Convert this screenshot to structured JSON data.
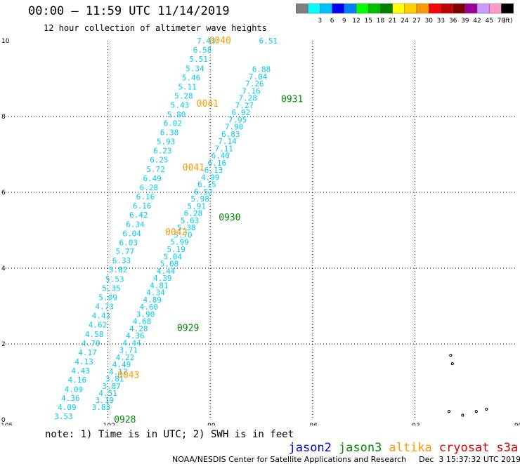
{
  "header": {
    "title": "00:00 – 11:59 UTC 11/14/2019",
    "subtitle": "12 hour collection of altimeter wave heights"
  },
  "colorbar": {
    "unit": "(ft)",
    "entries": [
      {
        "color": "#808080",
        "label": ""
      },
      {
        "color": "#00ffff",
        "label": "3"
      },
      {
        "color": "#00bfff",
        "label": "6"
      },
      {
        "color": "#0000ff",
        "label": "9"
      },
      {
        "color": "#0080ff",
        "label": "12"
      },
      {
        "color": "#00ff00",
        "label": "15"
      },
      {
        "color": "#00c000",
        "label": "18"
      },
      {
        "color": "#008000",
        "label": "21"
      },
      {
        "color": "#ffff00",
        "label": "24"
      },
      {
        "color": "#ffd000",
        "label": "27"
      },
      {
        "color": "#ff9900",
        "label": "30"
      },
      {
        "color": "#ff0000",
        "label": "33"
      },
      {
        "color": "#c00000",
        "label": "36"
      },
      {
        "color": "#800000",
        "label": "39"
      },
      {
        "color": "#990099",
        "label": "42"
      },
      {
        "color": "#cc99ff",
        "label": "45"
      },
      {
        "color": "#ff99cc",
        "label": "70"
      },
      {
        "color": "#000000",
        "label": ""
      }
    ]
  },
  "map": {
    "lon_range": [
      -105,
      -90
    ],
    "lat_range": [
      0,
      10
    ],
    "lon_ticks": [
      "-105",
      "-102",
      "-99",
      "-96",
      "-93",
      "-90"
    ],
    "lat_ticks": [
      "0",
      "2",
      "4",
      "6",
      "8",
      "10"
    ],
    "colors": {
      "jason3": "#008800",
      "altika": "#ff9900",
      "swh": "#00ccee"
    },
    "tracks": [
      {
        "satellite": "altika",
        "values": [
          "7.43",
          "6.58",
          "5.51",
          "5.34",
          "5.46",
          "5.11",
          "5.28",
          "5.43",
          "5.80",
          "6.02",
          "6.38",
          "5.93",
          "6.23",
          "6.25",
          "5.72",
          "6.49",
          "6.28",
          "6.16",
          "6.16",
          "6.42",
          "6.34",
          "6.04",
          "6.03",
          "5.77",
          "6.33",
          "5.82",
          "5.53",
          "5.35",
          "5.09",
          "4.73",
          "4.43",
          "4.62",
          "4.58",
          "4.70",
          "4.17",
          "4.13",
          "4.43",
          "4.16",
          "4.09",
          "4.36",
          "4.09",
          "3.53"
        ],
        "lat": [
          10.0,
          9.76,
          9.52,
          9.27,
          9.03,
          8.79,
          8.55,
          8.31,
          8.06,
          7.82,
          7.58,
          7.34,
          7.1,
          6.86,
          6.61,
          6.37,
          6.13,
          5.89,
          5.65,
          5.41,
          5.16,
          4.92,
          4.68,
          4.44,
          4.2,
          3.96,
          3.71,
          3.47,
          3.23,
          2.99,
          2.75,
          2.51,
          2.26,
          2.02,
          1.78,
          1.54,
          1.3,
          1.06,
          0.81,
          0.57,
          0.33,
          0.09
        ],
        "lon": [
          -99.12,
          -99.23,
          -99.34,
          -99.45,
          -99.56,
          -99.67,
          -99.78,
          -99.89,
          -99.99,
          -100.1,
          -100.2,
          -100.3,
          -100.4,
          -100.5,
          -100.6,
          -100.7,
          -100.8,
          -100.9,
          -101.0,
          -101.1,
          -101.2,
          -101.3,
          -101.4,
          -101.5,
          -101.6,
          -101.7,
          -101.8,
          -101.9,
          -102.0,
          -102.1,
          -102.2,
          -102.3,
          -102.4,
          -102.5,
          -102.6,
          -102.7,
          -102.8,
          -102.9,
          -103.0,
          -103.1,
          -103.2,
          -103.3
        ]
      },
      {
        "satellite": "altika",
        "values": [
          "3.83",
          "3.19",
          "4.51",
          "3.87",
          "3.81",
          "4.17",
          "4.49",
          "4.22",
          "3.71",
          "4.44",
          "4.36",
          "4.28",
          "4.68",
          "3.90",
          "4.60",
          "4.89",
          "4.34",
          "4.81",
          "4.39",
          "4.44",
          "5.08",
          "5.04",
          "5.19",
          "5.99",
          "5.70",
          "5.38",
          "5.63",
          "6.28",
          "5.91",
          "5.98",
          "6.52",
          "6.15",
          "4.99",
          "6.13",
          "6.16",
          "6.40",
          "7.11",
          "7.14",
          "6.83",
          "7.90",
          "7.95",
          "6.92",
          "7.27",
          "7.28",
          "7.16",
          "7.26",
          "7.04",
          "6.88",
          "6.51"
        ],
        "lat": [
          0.33,
          0.52,
          0.7,
          0.89,
          1.08,
          1.27,
          1.46,
          1.65,
          1.84,
          2.03,
          2.22,
          2.41,
          2.6,
          2.79,
          2.98,
          3.17,
          3.36,
          3.55,
          3.74,
          3.93,
          4.12,
          4.31,
          4.5,
          4.69,
          4.88,
          5.07,
          5.26,
          5.45,
          5.64,
          5.83,
          6.02,
          6.21,
          6.4,
          6.59,
          6.78,
          6.97,
          7.16,
          7.35,
          7.54,
          7.73,
          7.92,
          8.11,
          8.3,
          8.49,
          8.68,
          8.87,
          9.06,
          9.25,
          10.0
        ],
        "lon": [
          -102.2,
          -102.1,
          -102.0,
          -101.9,
          -101.8,
          -101.7,
          -101.6,
          -101.5,
          -101.4,
          -101.3,
          -101.2,
          -101.1,
          -101.0,
          -100.9,
          -100.8,
          -100.7,
          -100.6,
          -100.5,
          -100.4,
          -100.3,
          -100.2,
          -100.1,
          -100.0,
          -99.9,
          -99.8,
          -99.7,
          -99.6,
          -99.5,
          -99.4,
          -99.3,
          -99.2,
          -99.1,
          -99.0,
          -98.9,
          -98.8,
          -98.7,
          -98.6,
          -98.5,
          -98.4,
          -98.3,
          -98.2,
          -98.1,
          -98.0,
          -97.9,
          -97.8,
          -97.7,
          -97.6,
          -97.5,
          -97.3
        ]
      }
    ],
    "time_labels": [
      {
        "text": "0040",
        "satellite": "altika",
        "lon": -98.71,
        "lat": 10.0
      },
      {
        "text": "0041",
        "satellite": "altika",
        "lon": -99.08,
        "lat": 8.33
      },
      {
        "text": "0041",
        "satellite": "altika",
        "lon": -99.49,
        "lat": 6.65
      },
      {
        "text": "0042",
        "satellite": "altika",
        "lon": -100.0,
        "lat": 4.94
      },
      {
        "text": "0043",
        "satellite": "altika",
        "lon": -101.4,
        "lat": 1.18
      },
      {
        "text": "0931",
        "satellite": "jason3",
        "lon": -96.6,
        "lat": 8.45
      },
      {
        "text": "0930",
        "satellite": "jason3",
        "lon": -98.43,
        "lat": 5.33
      },
      {
        "text": "0929",
        "satellite": "jason3",
        "lon": -99.65,
        "lat": 2.42
      },
      {
        "text": "0928",
        "satellite": "jason3",
        "lon": -101.5,
        "lat": 0.0
      }
    ],
    "islands": [
      {
        "lon": -90.9,
        "lat": 0.28
      },
      {
        "lon": -91.2,
        "lat": 0.22
      },
      {
        "lon": -91.6,
        "lat": 0.12
      },
      {
        "lon": -92.0,
        "lat": 0.22
      },
      {
        "lon": -91.9,
        "lat": 1.48
      },
      {
        "lon": -91.95,
        "lat": 1.7
      }
    ]
  },
  "footnote": "note: 1) Time is in UTC; 2) SWH is in feet",
  "legend": [
    {
      "label": "jason2",
      "color": "#0000dd"
    },
    {
      "label": "jason3",
      "color": "#008800"
    },
    {
      "label": "altika",
      "color": "#ff9900"
    },
    {
      "label": "cryosat",
      "color": "#dd0000"
    },
    {
      "label": "s3a",
      "color": "#cc0000"
    }
  ],
  "credit": {
    "org": "NOAA/NESDIS Center for Satellite Applications and Research",
    "date": "Dec  3 15:37:32 UTC 2019"
  }
}
